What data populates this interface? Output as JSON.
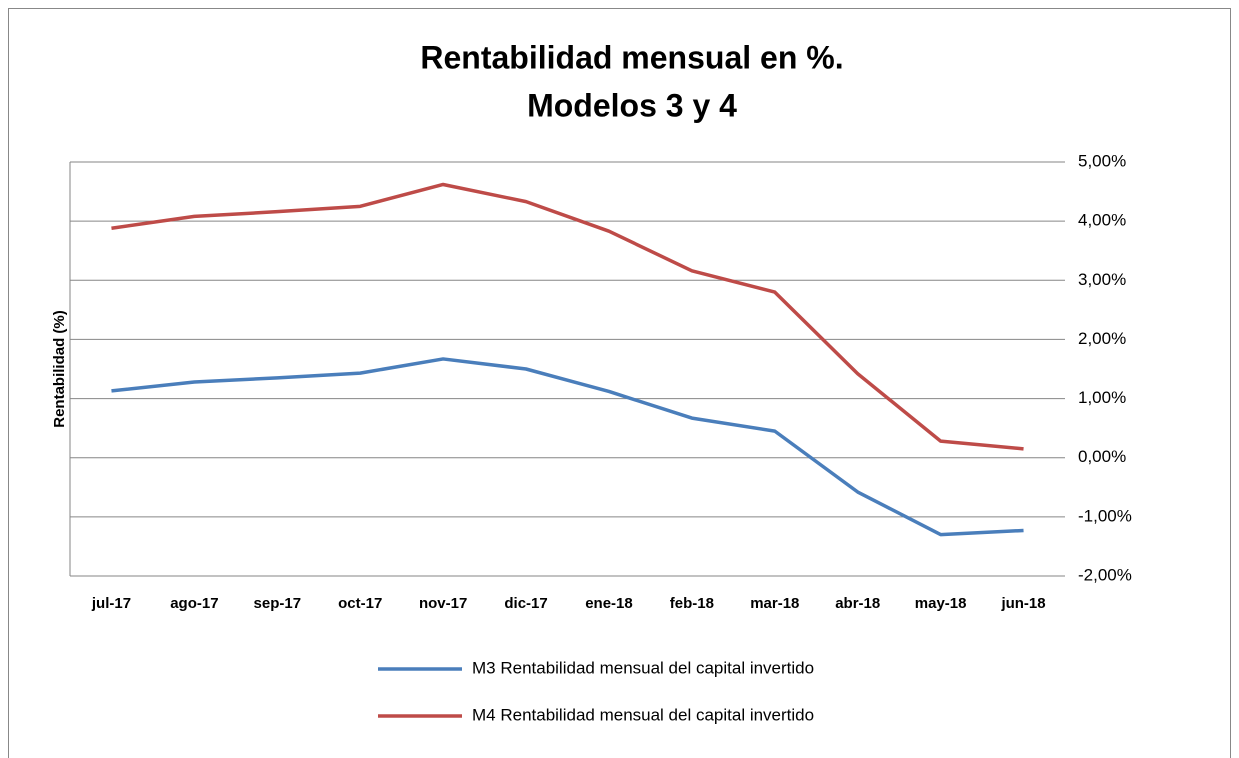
{
  "chart_data": {
    "type": "line",
    "title": [
      "Rentabilidad mensual en %.",
      "Modelos 3 y 4"
    ],
    "y_axis_label": "Rentabilidad (%)",
    "categories": [
      "jul-17",
      "ago-17",
      "sep-17",
      "oct-17",
      "nov-17",
      "dic-17",
      "ene-18",
      "feb-18",
      "mar-18",
      "abr-18",
      "may-18",
      "jun-18"
    ],
    "series": [
      {
        "name": "M3 Rentabilidad mensual del capital invertido",
        "color": "#4a7ebb",
        "values": [
          1.13,
          1.28,
          1.35,
          1.43,
          1.67,
          1.5,
          1.12,
          0.67,
          0.45,
          -0.58,
          -1.3,
          -1.23
        ]
      },
      {
        "name": "M4 Rentabilidad mensual del capital invertido",
        "color": "#be4b48",
        "values": [
          3.88,
          4.08,
          4.16,
          4.25,
          4.62,
          4.33,
          3.83,
          3.16,
          2.8,
          1.42,
          0.28,
          0.15
        ]
      }
    ],
    "ylim": [
      -2,
      5
    ],
    "yticks": [
      {
        "value": -2,
        "label": "-2,00%"
      },
      {
        "value": -1,
        "label": "-1,00%"
      },
      {
        "value": 0,
        "label": "0,00%"
      },
      {
        "value": 1,
        "label": "1,00%"
      },
      {
        "value": 2,
        "label": "2,00%"
      },
      {
        "value": 3,
        "label": "3,00%"
      },
      {
        "value": 4,
        "label": "4,00%"
      },
      {
        "value": 5,
        "label": "5,00%"
      }
    ],
    "y_axis_side": "right",
    "grid": true,
    "legend": "bottom"
  }
}
